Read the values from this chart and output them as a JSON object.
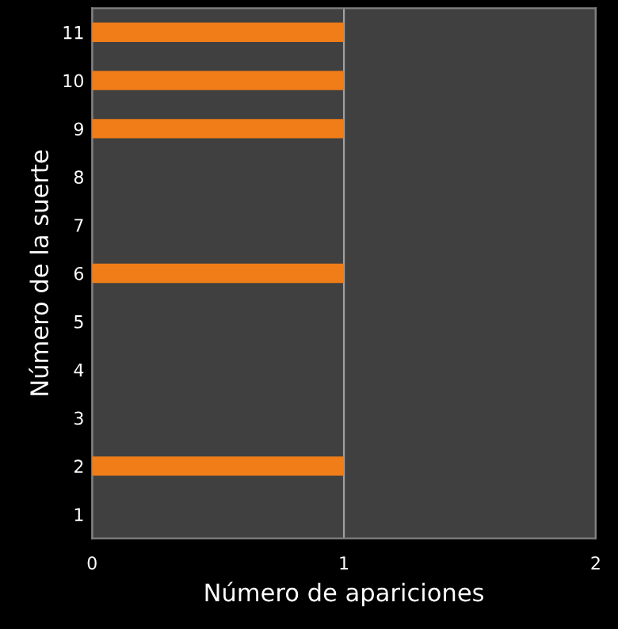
{
  "chart_data": {
    "type": "bar",
    "orientation": "horizontal",
    "xlabel": "Número de apariciones",
    "ylabel": "Número de la suerte",
    "categories": [
      "11",
      "10",
      "9",
      "8",
      "7",
      "6",
      "5",
      "4",
      "3",
      "2",
      "1"
    ],
    "values": [
      1,
      1,
      1,
      0,
      0,
      1,
      0,
      0,
      0,
      1,
      0
    ],
    "color": "#f07d18",
    "xlim": [
      0,
      2
    ],
    "xticks": [
      0,
      1,
      2
    ],
    "grid": "x"
  }
}
